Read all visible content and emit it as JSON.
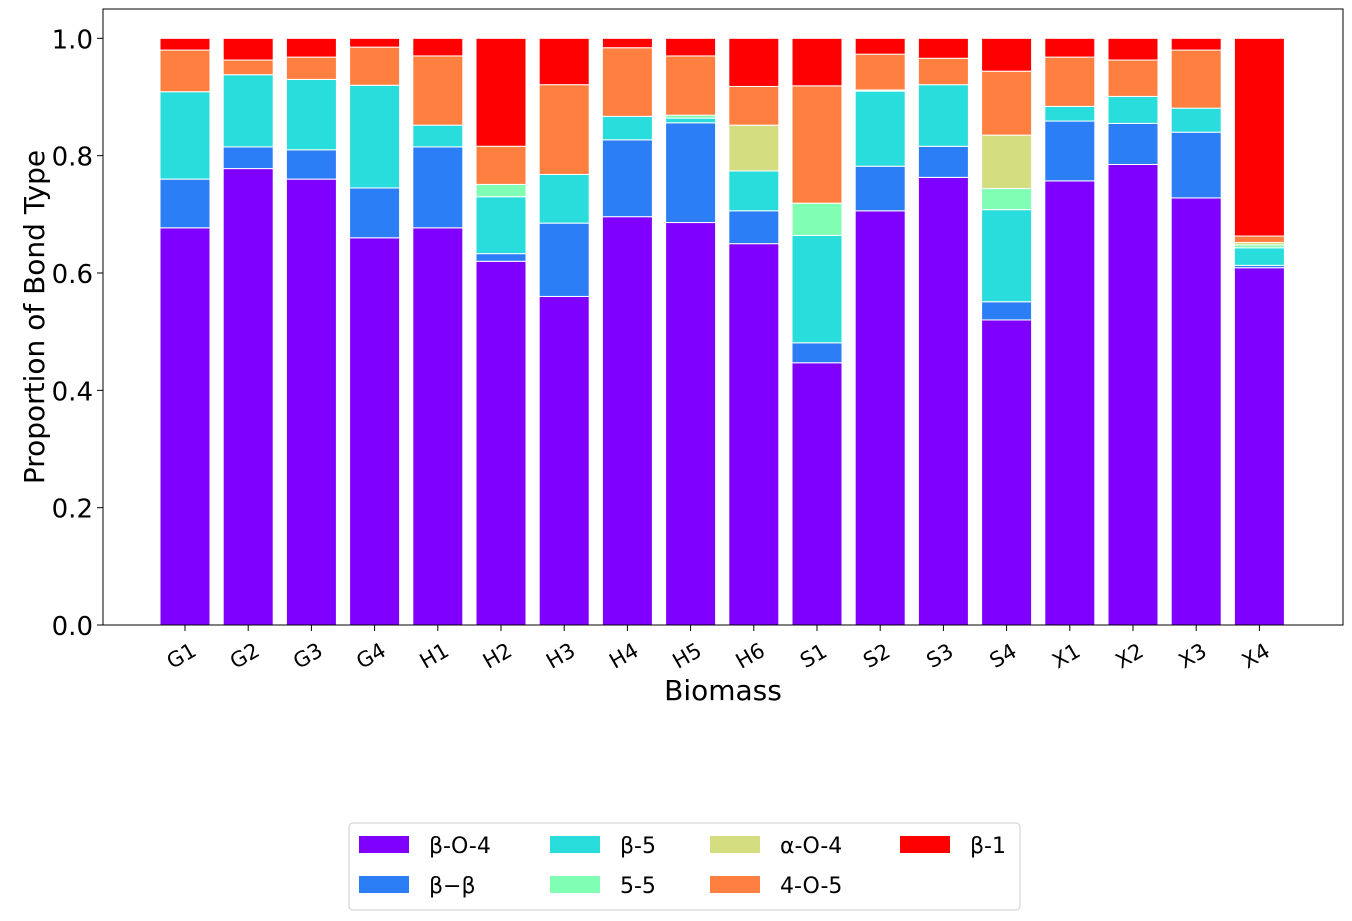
{
  "chart_data": {
    "type": "bar",
    "stacked": true,
    "xlabel": "Biomass",
    "ylabel": "Proportion of Bond Type",
    "ylim": [
      0,
      1.05
    ],
    "yticks": [
      "0.0",
      "0.2",
      "0.4",
      "0.6",
      "0.8",
      "1.0"
    ],
    "ytick_values": [
      0,
      0.2,
      0.4,
      0.6,
      0.8,
      1.0
    ],
    "grid": false,
    "legend_position": "bottom-center",
    "categories": [
      "G1",
      "G2",
      "G3",
      "G4",
      "H1",
      "H2",
      "H3",
      "H4",
      "H5",
      "H6",
      "S1",
      "S2",
      "S3",
      "S4",
      "X1",
      "X2",
      "X3",
      "X4"
    ],
    "series": [
      {
        "name": "β-O-4",
        "color": "#8000ff",
        "values": [
          0.677,
          0.778,
          0.76,
          0.66,
          0.677,
          0.62,
          0.56,
          0.696,
          0.686,
          0.65,
          0.447,
          0.706,
          0.763,
          0.52,
          0.757,
          0.785,
          0.728,
          0.609
        ]
      },
      {
        "name": "β−β",
        "color": "#2c7ef7",
        "values": [
          0.083,
          0.037,
          0.05,
          0.085,
          0.138,
          0.013,
          0.125,
          0.131,
          0.17,
          0.056,
          0.034,
          0.076,
          0.053,
          0.031,
          0.102,
          0.07,
          0.112,
          0.004
        ]
      },
      {
        "name": "β-5",
        "color": "#2adddd",
        "values": [
          0.149,
          0.123,
          0.12,
          0.175,
          0.037,
          0.097,
          0.083,
          0.04,
          0.008,
          0.068,
          0.183,
          0.128,
          0.105,
          0.157,
          0.025,
          0.046,
          0.041,
          0.03
        ]
      },
      {
        "name": "5-5",
        "color": "#80ffb4",
        "values": [
          0,
          0,
          0,
          0,
          0,
          0.021,
          0,
          0,
          0.005,
          0,
          0.055,
          0.002,
          0,
          0.036,
          0,
          0,
          0,
          0.005
        ]
      },
      {
        "name": "α-O-4",
        "color": "#d4dd80",
        "values": [
          0,
          0,
          0,
          0,
          0,
          0,
          0,
          0,
          0,
          0.078,
          0,
          0,
          0,
          0.091,
          0,
          0,
          0,
          0.004
        ]
      },
      {
        "name": "4-O-5",
        "color": "#ff7f41",
        "values": [
          0.071,
          0.025,
          0.038,
          0.065,
          0.118,
          0.065,
          0.153,
          0.117,
          0.101,
          0.066,
          0.2,
          0.061,
          0.045,
          0.109,
          0.084,
          0.062,
          0.099,
          0.011
        ]
      },
      {
        "name": "β-1",
        "color": "#ff0000",
        "values": [
          0.02,
          0.037,
          0.032,
          0.015,
          0.03,
          0.184,
          0.079,
          0.016,
          0.03,
          0.082,
          0.081,
          0.027,
          0.034,
          0.056,
          0.032,
          0.037,
          0.02,
          0.337
        ]
      }
    ]
  }
}
